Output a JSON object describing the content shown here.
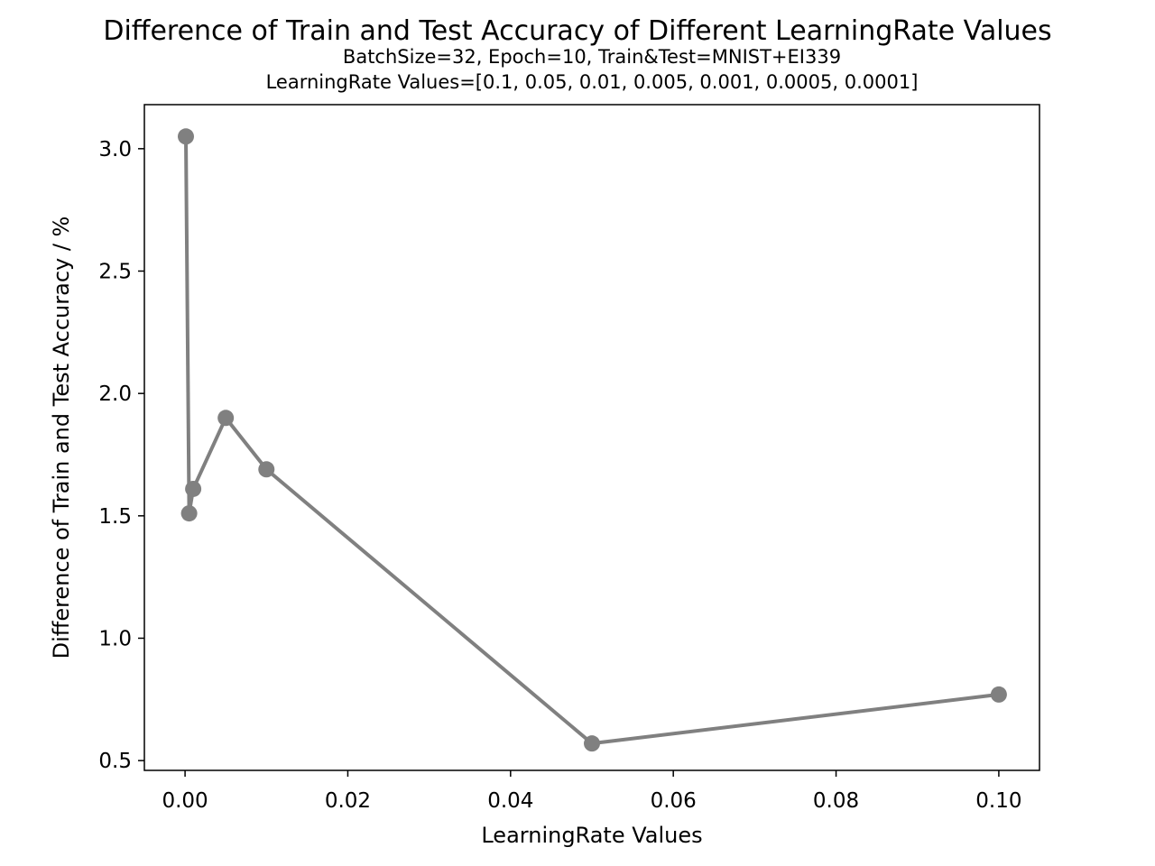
{
  "chart_data": {
    "type": "line",
    "title": "Difference of Train and Test Accuracy of Different LearningRate Values",
    "subtitle_lines": [
      "BatchSize=32, Epoch=10, Train&Test=MNIST+EI339",
      "LearningRate Values=[0.1, 0.05, 0.01, 0.005, 0.001, 0.0005, 0.0001]"
    ],
    "xlabel": "LearningRate Values",
    "ylabel": "Difference of Train and Test Accuracy / %",
    "xlim": [
      -0.005,
      0.105
    ],
    "ylim": [
      0.46,
      3.18
    ],
    "xticks": [
      0.0,
      0.02,
      0.04,
      0.06,
      0.08,
      0.1
    ],
    "xtick_labels": [
      "0.00",
      "0.02",
      "0.04",
      "0.06",
      "0.08",
      "0.10"
    ],
    "yticks": [
      0.5,
      1.0,
      1.5,
      2.0,
      2.5,
      3.0
    ],
    "ytick_labels": [
      "0.5",
      "1.0",
      "1.5",
      "2.0",
      "2.5",
      "3.0"
    ],
    "grid": false,
    "series": [
      {
        "color": "#808080",
        "x": [
          0.0001,
          0.0005,
          0.001,
          0.005,
          0.01,
          0.05,
          0.1
        ],
        "y": [
          3.05,
          1.51,
          1.61,
          1.9,
          1.69,
          0.57,
          0.77
        ]
      }
    ]
  }
}
